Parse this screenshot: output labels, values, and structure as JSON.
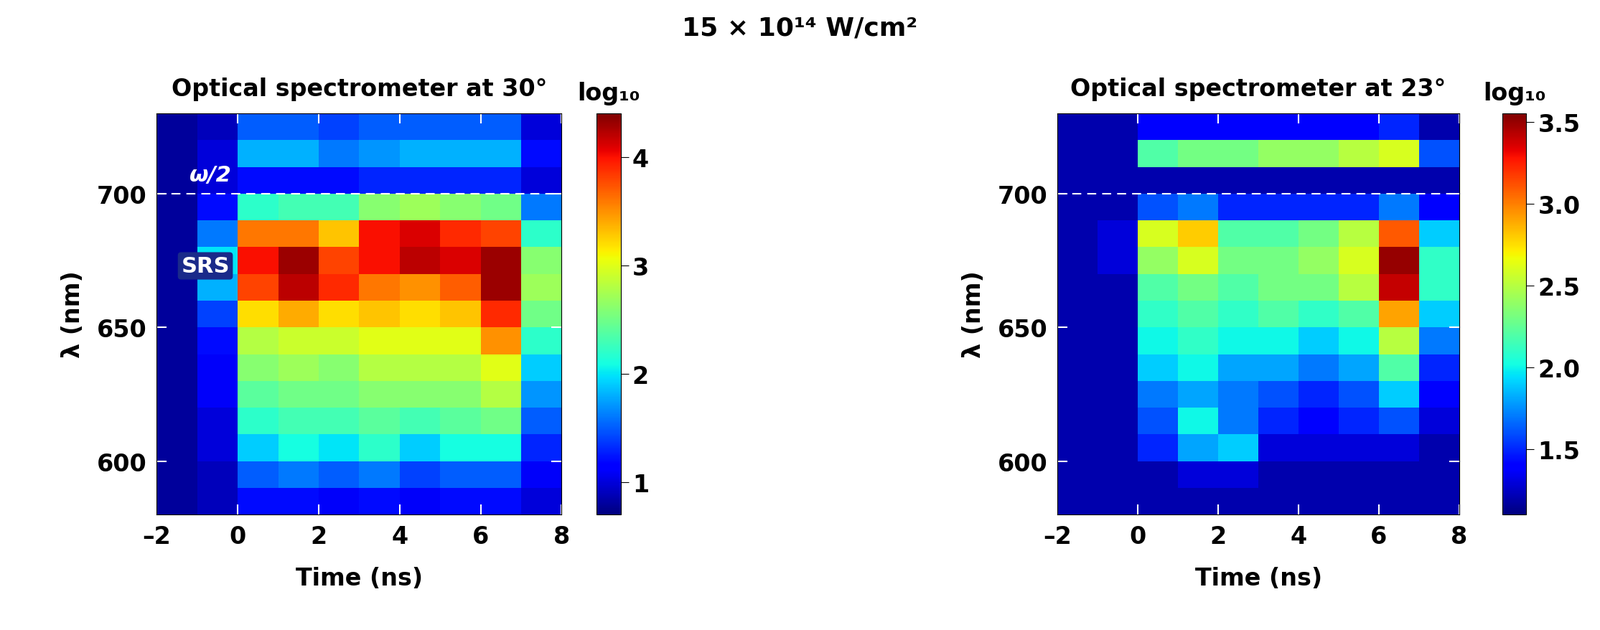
{
  "suptitle": "15 × 10¹⁴ W/cm²",
  "chart_data": [
    {
      "type": "heatmap",
      "title": "Optical spectrometer at 30°",
      "x_label": "Time (ns)",
      "y_label": "λ (nm)",
      "xlim": [
        -2,
        8
      ],
      "ylim": [
        580,
        730
      ],
      "xticks": [
        {
          "value": -2,
          "label": "–2"
        },
        0,
        2,
        4,
        6,
        8
      ],
      "yticks": [
        600,
        650,
        700
      ],
      "hline": 700,
      "annotations": [
        "ω/2",
        "SRS"
      ],
      "x_edges": [
        -2,
        -1,
        0,
        1,
        2,
        3,
        4,
        5,
        6,
        7,
        8
      ],
      "y_edges": [
        580,
        590,
        600,
        610,
        620,
        630,
        640,
        650,
        660,
        670,
        680,
        690,
        700,
        710,
        720,
        730
      ],
      "cells": [
        [
          0.8,
          0.9,
          1.2,
          1.2,
          1.1,
          1.2,
          1.1,
          1.2,
          1.2,
          1.0
        ],
        [
          0.8,
          0.9,
          1.5,
          1.6,
          1.5,
          1.6,
          1.4,
          1.5,
          1.5,
          1.1
        ],
        [
          0.8,
          1.0,
          1.9,
          2.1,
          2.0,
          2.2,
          1.9,
          2.1,
          2.1,
          1.3
        ],
        [
          0.8,
          1.0,
          2.2,
          2.3,
          2.3,
          2.4,
          2.3,
          2.4,
          2.5,
          1.5
        ],
        [
          0.8,
          1.1,
          2.4,
          2.5,
          2.5,
          2.6,
          2.6,
          2.6,
          2.8,
          1.7
        ],
        [
          0.8,
          1.1,
          2.6,
          2.7,
          2.6,
          2.8,
          2.8,
          2.8,
          3.0,
          1.9
        ],
        [
          0.8,
          1.2,
          2.8,
          2.9,
          2.9,
          3.0,
          3.0,
          3.0,
          3.5,
          2.2
        ],
        [
          0.8,
          1.4,
          3.2,
          3.4,
          3.2,
          3.3,
          3.2,
          3.3,
          3.9,
          2.5
        ],
        [
          0.8,
          1.8,
          3.8,
          4.2,
          3.9,
          3.6,
          3.5,
          3.7,
          4.3,
          2.7
        ],
        [
          0.8,
          2.0,
          4.0,
          4.3,
          3.8,
          4.0,
          4.2,
          4.1,
          4.3,
          2.6
        ],
        [
          0.8,
          1.6,
          3.6,
          3.6,
          3.3,
          4.0,
          4.1,
          3.9,
          3.8,
          2.2
        ],
        [
          0.8,
          1.2,
          2.2,
          2.3,
          2.3,
          2.6,
          2.7,
          2.6,
          2.5,
          1.6
        ],
        [
          0.8,
          1.0,
          1.2,
          1.2,
          1.2,
          1.3,
          1.3,
          1.3,
          1.3,
          1.0
        ],
        [
          0.8,
          1.0,
          1.8,
          1.8,
          1.6,
          1.7,
          1.8,
          1.8,
          1.8,
          1.2
        ],
        [
          0.8,
          0.9,
          1.5,
          1.5,
          1.4,
          1.5,
          1.5,
          1.5,
          1.5,
          1.0
        ]
      ],
      "colorbar": {
        "label": "log₁₀",
        "lim": [
          0.7,
          4.4
        ],
        "ticks": [
          1,
          2,
          3,
          4
        ]
      }
    },
    {
      "type": "heatmap",
      "title": "Optical spectrometer at 23°",
      "x_label": "Time (ns)",
      "y_label": "λ (nm)",
      "xlim": [
        -2,
        8
      ],
      "ylim": [
        580,
        730
      ],
      "xticks": [
        {
          "value": -2,
          "label": "–2"
        },
        0,
        2,
        4,
        6,
        8
      ],
      "yticks": [
        600,
        650,
        700
      ],
      "hline": 700,
      "annotations": [],
      "x_edges": [
        -2,
        -1,
        0,
        1,
        2,
        3,
        4,
        5,
        6,
        7,
        8
      ],
      "y_edges": [
        580,
        590,
        600,
        610,
        620,
        630,
        640,
        650,
        660,
        670,
        680,
        690,
        700,
        710,
        720,
        730
      ],
      "cells": [
        [
          1.2,
          1.2,
          1.2,
          1.2,
          1.2,
          1.2,
          1.2,
          1.2,
          1.2,
          1.2
        ],
        [
          1.2,
          1.2,
          1.2,
          1.3,
          1.3,
          1.2,
          1.2,
          1.2,
          1.2,
          1.2
        ],
        [
          1.2,
          1.2,
          1.5,
          1.8,
          1.9,
          1.3,
          1.3,
          1.3,
          1.3,
          1.2
        ],
        [
          1.2,
          1.2,
          1.6,
          2.0,
          1.7,
          1.5,
          1.4,
          1.5,
          1.6,
          1.3
        ],
        [
          1.2,
          1.2,
          1.7,
          1.8,
          1.7,
          1.6,
          1.5,
          1.6,
          1.9,
          1.4
        ],
        [
          1.2,
          1.2,
          1.9,
          2.0,
          1.8,
          1.8,
          1.7,
          1.8,
          2.2,
          1.5
        ],
        [
          1.2,
          1.2,
          2.0,
          2.1,
          2.0,
          2.0,
          1.9,
          2.0,
          2.5,
          1.7
        ],
        [
          1.2,
          1.2,
          2.1,
          2.2,
          2.1,
          2.2,
          2.1,
          2.2,
          2.9,
          1.9
        ],
        [
          1.2,
          1.2,
          2.2,
          2.3,
          2.2,
          2.3,
          2.3,
          2.5,
          3.4,
          2.1
        ],
        [
          1.2,
          1.3,
          2.4,
          2.6,
          2.3,
          2.3,
          2.4,
          2.6,
          3.5,
          2.1
        ],
        [
          1.2,
          1.3,
          2.6,
          2.8,
          2.2,
          2.2,
          2.3,
          2.5,
          3.1,
          1.9
        ],
        [
          1.2,
          1.2,
          1.6,
          1.7,
          1.5,
          1.5,
          1.5,
          1.5,
          1.7,
          1.4
        ],
        [
          1.2,
          1.2,
          1.2,
          1.2,
          1.2,
          1.2,
          1.2,
          1.2,
          1.2,
          1.2
        ],
        [
          1.2,
          1.2,
          2.2,
          2.3,
          2.3,
          2.4,
          2.4,
          2.5,
          2.6,
          1.6
        ],
        [
          1.2,
          1.2,
          1.4,
          1.4,
          1.4,
          1.4,
          1.4,
          1.4,
          1.5,
          1.2
        ]
      ],
      "colorbar": {
        "label": "log₁₀",
        "lim": [
          1.1,
          3.55
        ],
        "ticks": [
          1.5,
          {
            "value": 2,
            "label": "2.0"
          },
          2.5,
          {
            "value": 3,
            "label": "3.0"
          },
          3.5
        ]
      }
    }
  ]
}
